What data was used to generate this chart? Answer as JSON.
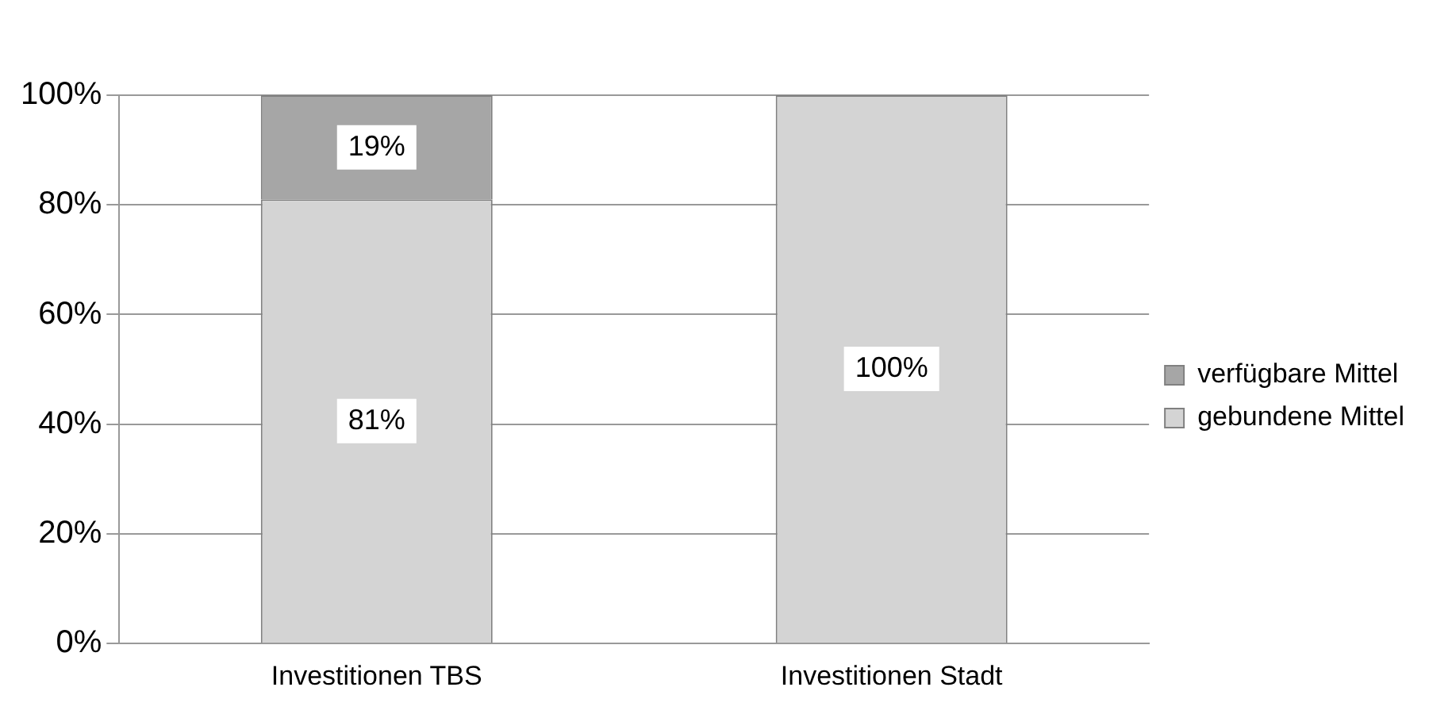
{
  "chart_data": {
    "type": "bar",
    "stacked": true,
    "categories": [
      "Investitionen TBS",
      "Investitionen Stadt"
    ],
    "series": [
      {
        "name": "gebundene Mittel",
        "color": "#d4d4d4",
        "values": [
          81,
          100
        ],
        "value_labels": [
          "81%",
          "100%"
        ]
      },
      {
        "name": "verfügbare Mittel",
        "color": "#a6a6a6",
        "values": [
          19,
          0
        ],
        "value_labels": [
          "19%",
          null
        ]
      }
    ],
    "ylim": [
      0,
      100
    ],
    "yticks": [
      {
        "value": 0,
        "label": "0%"
      },
      {
        "value": 20,
        "label": "20%"
      },
      {
        "value": 40,
        "label": "40%"
      },
      {
        "value": 60,
        "label": "60%"
      },
      {
        "value": 80,
        "label": "80%"
      },
      {
        "value": 100,
        "label": "100%"
      }
    ],
    "grid": "y",
    "legend": "right"
  }
}
